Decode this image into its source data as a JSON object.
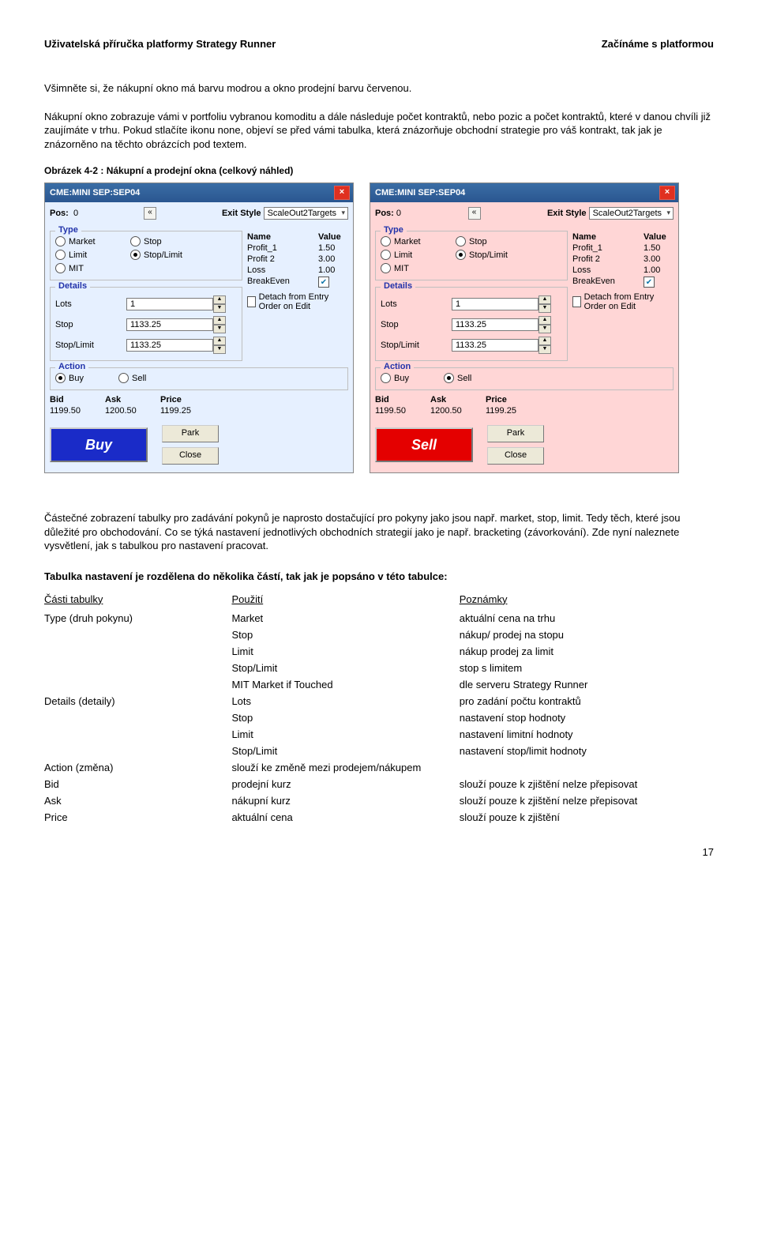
{
  "header": {
    "left": "Uživatelská příručka platformy Strategy Runner",
    "right": "Začínáme s platformou"
  },
  "para1": "Všimněte si, že nákupní okno má barvu modrou a okno prodejní barvu červenou.",
  "para2": "Nákupní okno zobrazuje vámi v portfoliu vybranou komoditu a dále následuje počet kontraktů, nebo pozic a počet kontraktů, které v danou chvíli již zaujímáte v trhu. Pokud stlačíte ikonu none, objeví se před vámi tabulka, která znázorňuje obchodní strategie pro váš kontrakt, tak jak je znázorněno na těchto obrázcích pod textem.",
  "fig_caption": "Obrázek 4-2 : Nákupní a prodejní okna (celkový náhled)",
  "win": {
    "title": "CME:MINI SEP:SEP04",
    "pos_label": "Pos:",
    "pos_val": "0",
    "exitstyle_label": "Exit Style",
    "exitstyle_value": "ScaleOut2Targets",
    "type_title": "Type",
    "radios": [
      "Market",
      "Stop",
      "Limit",
      "Stop/Limit",
      "MIT"
    ],
    "details_title": "Details",
    "lots_label": "Lots",
    "lots_val": "1",
    "stop_label": "Stop",
    "stop_val": "1133.25",
    "stoplimit_label": "Stop/Limit",
    "stoplimit_val": "1133.25",
    "detach_label": "Detach from Entry Order on Edit",
    "name_h": "Name",
    "value_h": "Value",
    "p1n": "Profit_1",
    "p1v": "1.50",
    "p2n": "Profit 2",
    "p2v": "3.00",
    "p3n": "Loss",
    "p3v": "1.00",
    "p4n": "BreakEven",
    "p4v": "",
    "p4chk": true,
    "action_title": "Action",
    "action_buy": "Buy",
    "action_sell": "Sell",
    "bid_h": "Bid",
    "ask_h": "Ask",
    "price_h": "Price",
    "bid_v": "1199.50",
    "ask_v": "1200.50",
    "price_v": "1199.25",
    "btn_park": "Park",
    "btn_close": "Close",
    "buy_bigbtn": "Buy",
    "sell_bigbtn": "Sell"
  },
  "para3": "Částečné zobrazení tabulky pro zadávání pokynů je naprosto dostačující pro pokyny jako jsou např. market, stop, limit. Tedy těch, které jsou důležité pro obchodování. Co se týká nastavení jednotlivých obchodních strategií jako je např. bracketing (závorkování). Zde nyní naleznete vysvětlení, jak s tabulkou pro nastavení pracovat.",
  "table_intro": "Tabulka nastavení je rozdělena do několika částí, tak jak je popsáno v této tabulce:",
  "table": {
    "headers": [
      "Části tabulky",
      "Použití",
      "Poznámky"
    ],
    "rows": [
      [
        "Type (druh pokynu)",
        "Market",
        "aktuální cena na trhu"
      ],
      [
        "",
        "Stop",
        "nákup/ prodej na stopu"
      ],
      [
        "",
        "Limit",
        "nákup prodej za limit"
      ],
      [
        "",
        "Stop/Limit",
        "stop s limitem"
      ],
      [
        "",
        "MIT Market if Touched",
        "dle serveru Strategy Runner"
      ],
      [
        "Details (detaily)",
        "Lots",
        "pro zadání počtu kontraktů"
      ],
      [
        "",
        "Stop",
        "nastavení stop hodnoty"
      ],
      [
        "",
        "Limit",
        "nastavení limitní hodnoty"
      ],
      [
        "",
        "Stop/Limit",
        "nastavení stop/limit hodnoty"
      ],
      [
        "Action (změna)",
        "slouží ke změně mezi prodejem/nákupem",
        ""
      ],
      [
        "Bid",
        "prodejní kurz",
        "slouží pouze k zjištění nelze přepisovat"
      ],
      [
        "Ask",
        "nákupní kurz",
        "slouží pouze k zjištění nelze přepisovat"
      ],
      [
        "Price",
        "aktuální cena",
        "slouží pouze k zjištění"
      ]
    ]
  },
  "pagenum": "17",
  "colors": {
    "buy_bg": "#e6f0ff",
    "sell_bg": "#ffd6d6",
    "titlebar": "#3a6ea5",
    "buy_btn": "#1a2bc8",
    "sell_btn": "#e40000"
  }
}
